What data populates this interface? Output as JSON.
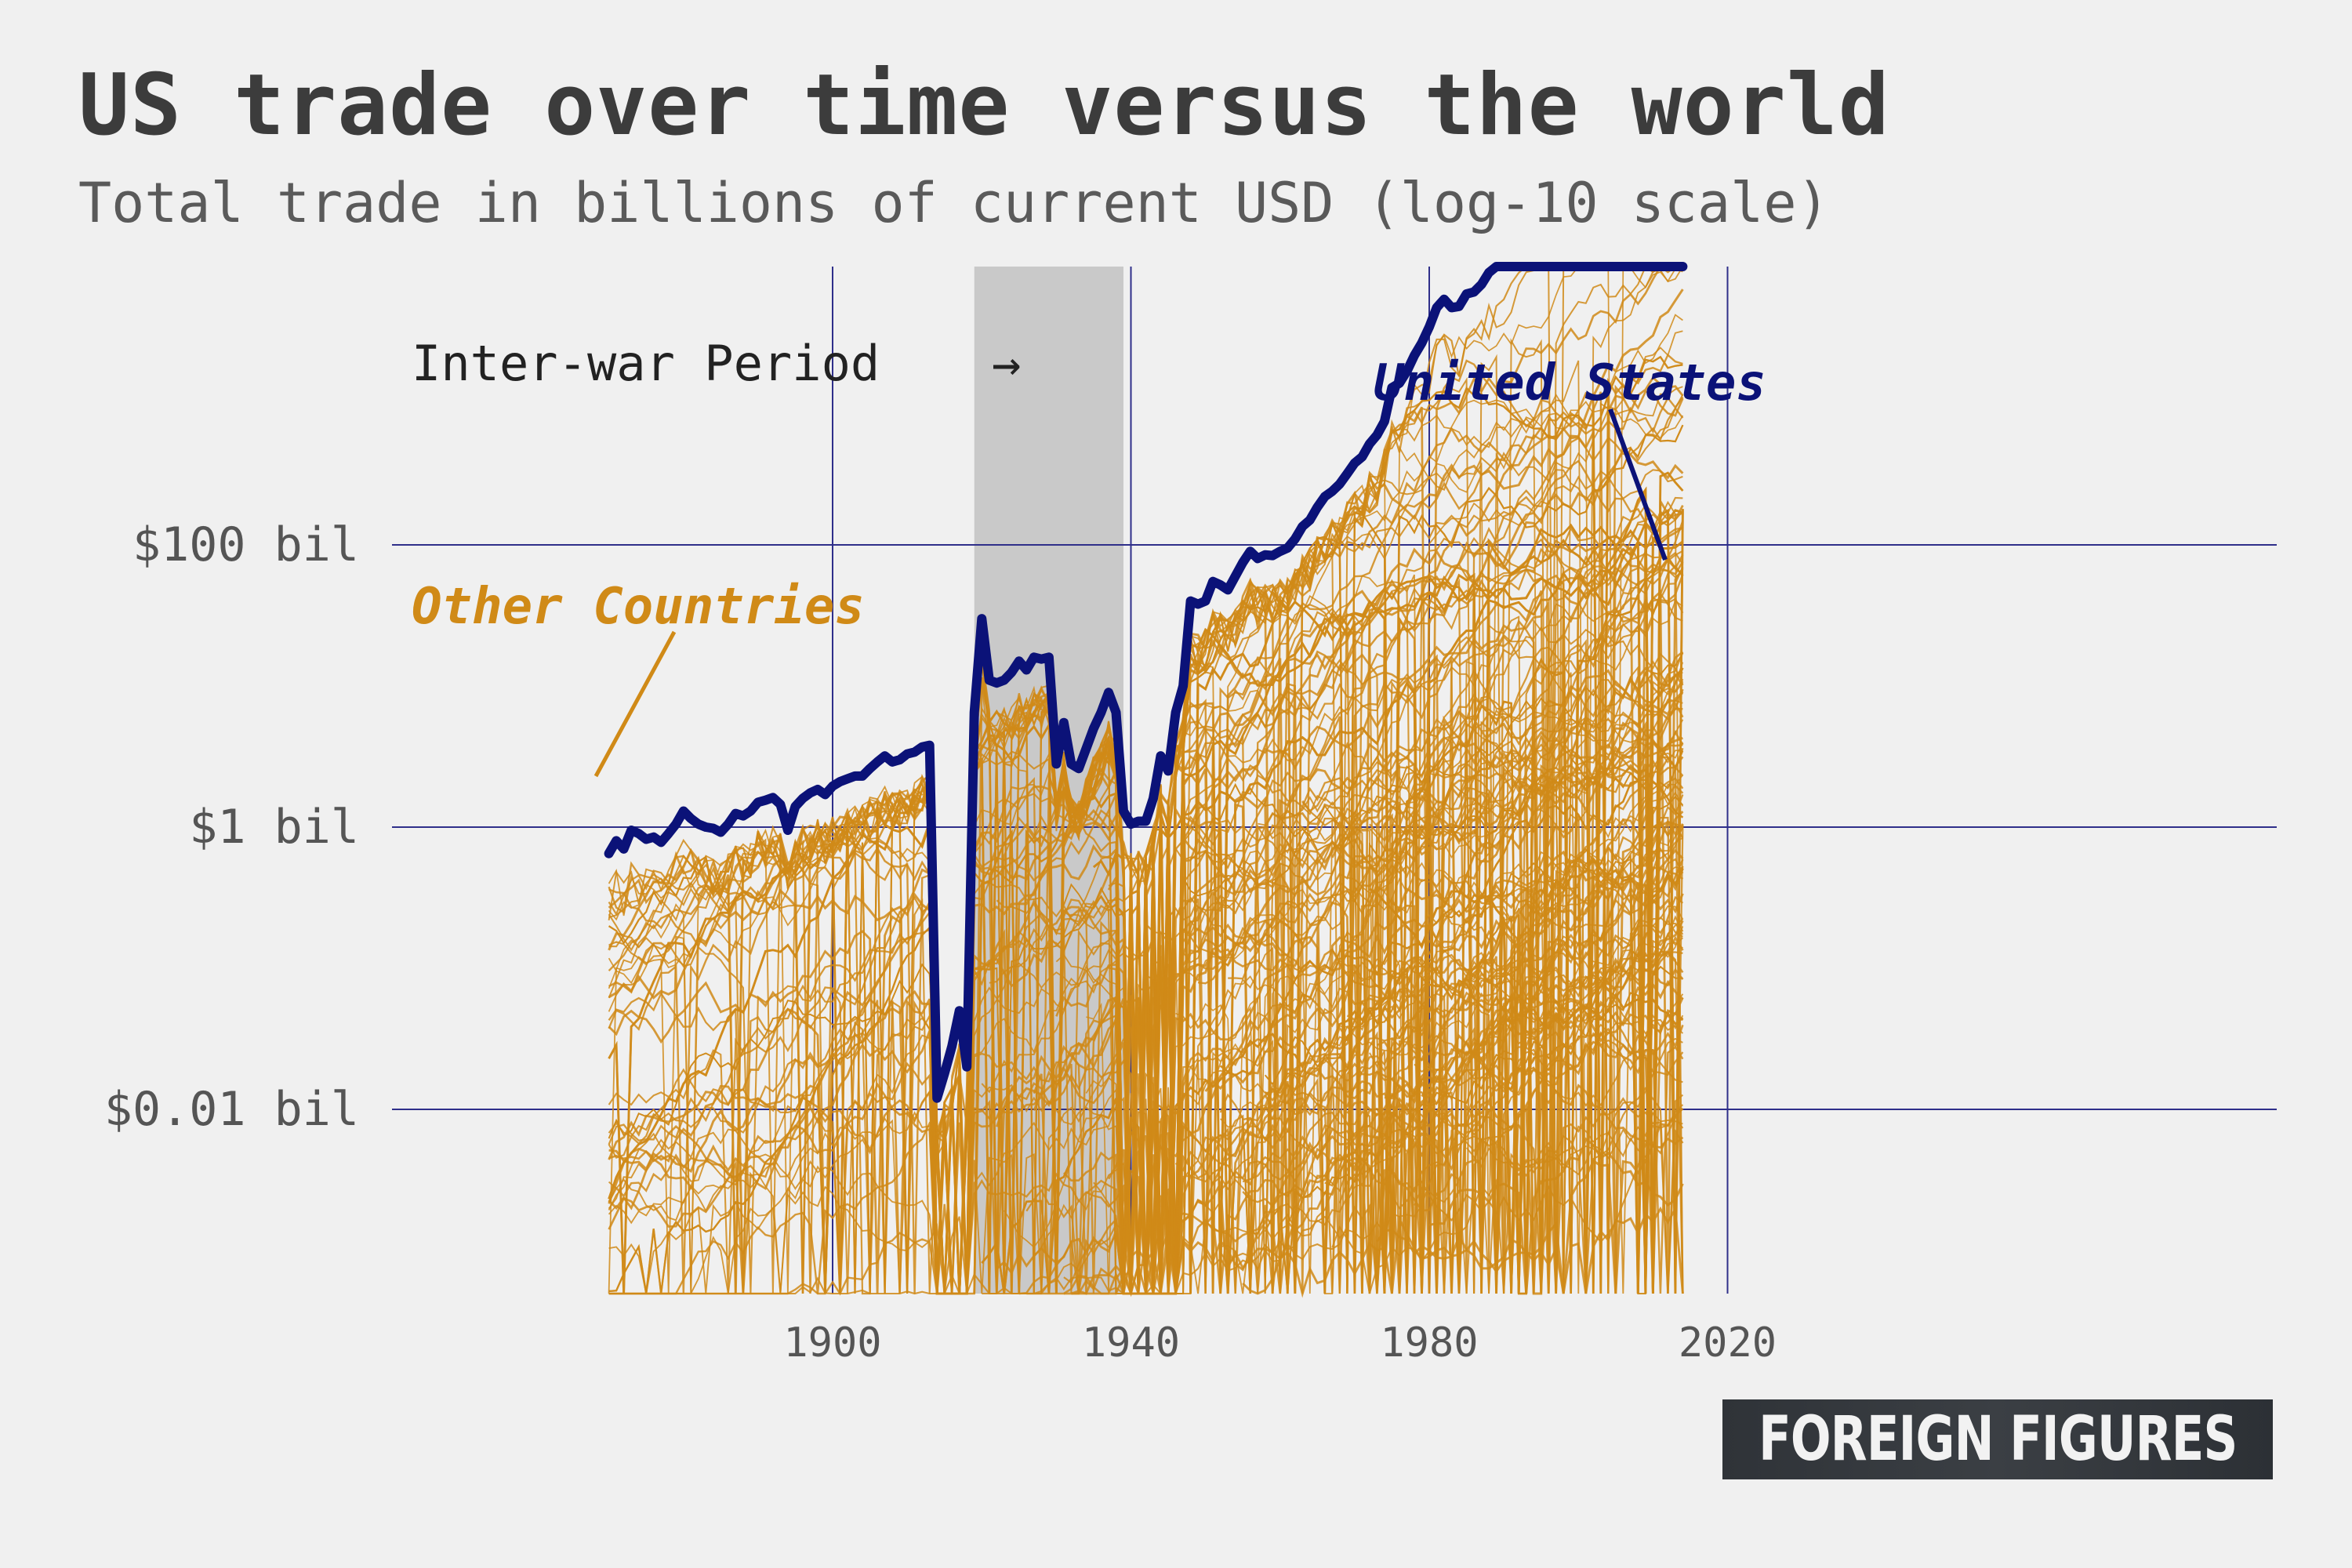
{
  "title": "US trade over time versus the world",
  "subtitle": "Total trade in billions of current USD (log-10 scale)",
  "logo": "FOREIGN FIGURES",
  "colors": {
    "background": "#f0f0f0",
    "us_line": "#0b1278",
    "other_lines": "#d08a17",
    "grid": "#2f2f8a",
    "shade": "#c9c9c9"
  },
  "chart_data": {
    "type": "line",
    "title": "US trade over time versus the world",
    "subtitle": "Total trade in billions of current USD (log-10 scale)",
    "y_scale": "log10",
    "xlim": [
      1870,
      2020
    ],
    "ylim_log10": [
      -4.6,
      3.6
    ],
    "x_ticks": [
      1900,
      1940,
      1980,
      2020
    ],
    "x_tick_labels": [
      "1900",
      "1940",
      "1980",
      "2020"
    ],
    "y_ticks": [
      0.01,
      1,
      100
    ],
    "y_tick_labels": [
      "$0.01 bil",
      "$1 bil",
      "$100 bil"
    ],
    "grid": true,
    "shaded_region": {
      "label": "Inter-war Period",
      "x": [
        1919,
        1939
      ]
    },
    "annotations": [
      {
        "text": "Inter-war Period",
        "points_to": "shaded_region"
      },
      {
        "text": "United States",
        "series": "United States"
      },
      {
        "text": "Other Countries",
        "series": "Other Countries"
      }
    ],
    "series": [
      {
        "name": "United States",
        "x": [
          1870,
          1871,
          1872,
          1873,
          1874,
          1875,
          1876,
          1877,
          1878,
          1879,
          1880,
          1881,
          1882,
          1883,
          1884,
          1885,
          1886,
          1887,
          1888,
          1889,
          1890,
          1891,
          1892,
          1893,
          1894,
          1895,
          1896,
          1897,
          1898,
          1899,
          1900,
          1901,
          1902,
          1903,
          1904,
          1905,
          1906,
          1907,
          1908,
          1909,
          1910,
          1911,
          1912,
          1913,
          1914,
          1915,
          1916,
          1917,
          1918,
          1919,
          1920,
          1921,
          1922,
          1923,
          1924,
          1925,
          1926,
          1927,
          1928,
          1929,
          1930,
          1931,
          1932,
          1933,
          1934,
          1935,
          1936,
          1937,
          1938,
          1939,
          1940,
          1941,
          1942,
          1943,
          1944,
          1945,
          1946,
          1947,
          1948,
          1949,
          1950,
          1951,
          1952,
          1953,
          1954,
          1955,
          1956,
          1957,
          1958,
          1959,
          1960,
          1961,
          1962,
          1963,
          1964,
          1965,
          1966,
          1967,
          1968,
          1969,
          1970,
          1971,
          1972,
          1973,
          1974,
          1975,
          1976,
          1977,
          1978,
          1979,
          1980,
          1981,
          1982,
          1983,
          1984,
          1985,
          1986,
          1987,
          1988,
          1989,
          1990,
          1991,
          1992,
          1993,
          1994,
          1995,
          1996,
          1997,
          1998,
          1999,
          2000,
          2001,
          2002,
          2003,
          2004,
          2005,
          2006,
          2007,
          2008,
          2009,
          2010,
          2011,
          2012,
          2013,
          2014
        ],
        "values": [
          0.65,
          0.8,
          0.7,
          0.95,
          0.9,
          0.82,
          0.85,
          0.78,
          0.9,
          1.05,
          1.3,
          1.15,
          1.05,
          1.0,
          0.98,
          0.92,
          1.05,
          1.25,
          1.2,
          1.3,
          1.5,
          1.55,
          1.62,
          1.45,
          0.95,
          1.4,
          1.6,
          1.75,
          1.85,
          1.7,
          1.95,
          2.1,
          2.2,
          2.3,
          2.3,
          2.6,
          2.9,
          3.2,
          2.9,
          3.0,
          3.3,
          3.4,
          3.7,
          3.8,
          0.012,
          0.018,
          0.028,
          0.05,
          0.02,
          6.5,
          30,
          11,
          10.5,
          11,
          12.5,
          15,
          13,
          16,
          15.5,
          16,
          2.8,
          5.5,
          2.8,
          2.6,
          3.6,
          5,
          6.5,
          9,
          6.5,
          1.3,
          1.05,
          1.1,
          1.1,
          1.6,
          3.2,
          2.5,
          6.5,
          10,
          40,
          38,
          40,
          55,
          52,
          48,
          60,
          75,
          90,
          80,
          85,
          84,
          90,
          95,
          110,
          135,
          150,
          185,
          220,
          240,
          270,
          320,
          380,
          420,
          520,
          600,
          750,
          1300,
          1400,
          1700,
          2200,
          2700,
          3500,
          4800,
          5500,
          4800,
          4900,
          6000,
          6200,
          7000,
          8500,
          10000,
          11500,
          12500,
          13500,
          15500,
          18000,
          20000,
          22000,
          25000,
          27000,
          29000,
          35000,
          40000,
          42000,
          48000,
          58000,
          68000,
          78000,
          96000,
          110000,
          135000,
          50000,
          95000,
          120000,
          125000,
          130000
        ]
      },
      {
        "name": "Other Countries",
        "note": "Roughly 150 individual country series, each below the US line; drawn as thin amber lines spanning about $0.0001 bil to about $40 bil."
      }
    ]
  }
}
